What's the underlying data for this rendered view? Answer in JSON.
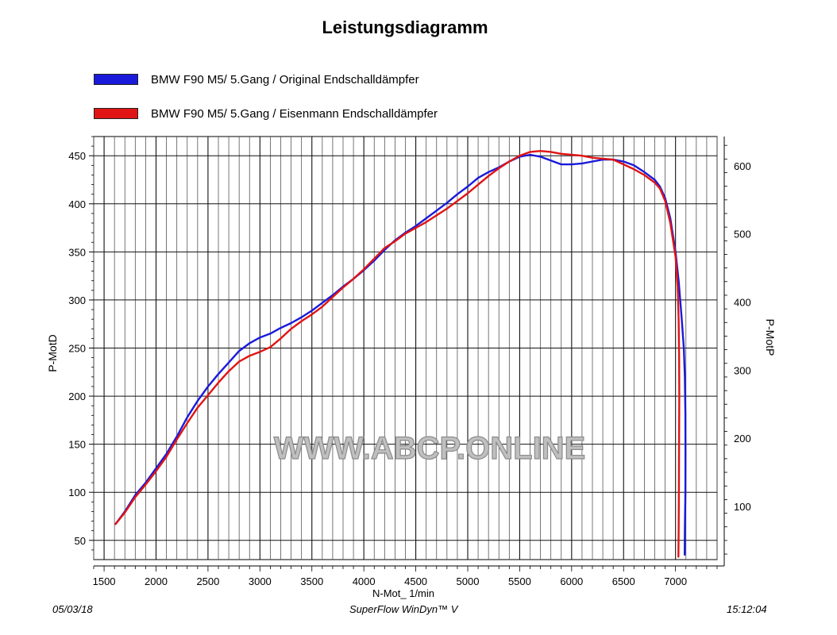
{
  "chart_data": {
    "type": "line",
    "title": "Leistungsdiagramm",
    "xlabel": "N-Mot_ 1/min",
    "ylabel_left": "P-MotD",
    "ylabel_right": "P-MotP",
    "xlim": [
      1400,
      7400
    ],
    "ylim_left": [
      30,
      470
    ],
    "ylim_right": [
      21.9,
      643
    ],
    "x_ticks": [
      1500,
      2000,
      2500,
      3000,
      3500,
      4000,
      4500,
      5000,
      5500,
      6000,
      6500,
      7000
    ],
    "y_ticks_left": [
      50,
      100,
      150,
      200,
      250,
      300,
      350,
      400,
      450
    ],
    "y_ticks_right": [
      100,
      200,
      300,
      400,
      500,
      600
    ],
    "grid": true,
    "legend_position": "top-left",
    "series": [
      {
        "name": "BMW F90 M5/ 5.Gang / Original Endschalldämpfer",
        "color": "#1a1adb",
        "points": [
          [
            1610,
            67
          ],
          [
            1700,
            80
          ],
          [
            1800,
            97
          ],
          [
            1900,
            110
          ],
          [
            2000,
            125
          ],
          [
            2100,
            140
          ],
          [
            2200,
            158
          ],
          [
            2300,
            178
          ],
          [
            2400,
            195
          ],
          [
            2500,
            210
          ],
          [
            2600,
            223
          ],
          [
            2700,
            235
          ],
          [
            2800,
            247
          ],
          [
            2900,
            255
          ],
          [
            3000,
            261
          ],
          [
            3100,
            265
          ],
          [
            3200,
            271
          ],
          [
            3300,
            276
          ],
          [
            3400,
            282
          ],
          [
            3500,
            289
          ],
          [
            3600,
            297
          ],
          [
            3700,
            305
          ],
          [
            3800,
            314
          ],
          [
            3900,
            322
          ],
          [
            4000,
            331
          ],
          [
            4100,
            341
          ],
          [
            4200,
            352
          ],
          [
            4300,
            362
          ],
          [
            4400,
            370
          ],
          [
            4500,
            377
          ],
          [
            4600,
            385
          ],
          [
            4700,
            393
          ],
          [
            4800,
            401
          ],
          [
            4900,
            410
          ],
          [
            5000,
            418
          ],
          [
            5100,
            427
          ],
          [
            5200,
            433
          ],
          [
            5300,
            438
          ],
          [
            5400,
            444
          ],
          [
            5500,
            449
          ],
          [
            5600,
            451
          ],
          [
            5700,
            449
          ],
          [
            5800,
            445
          ],
          [
            5900,
            441
          ],
          [
            6000,
            441
          ],
          [
            6100,
            442
          ],
          [
            6200,
            444
          ],
          [
            6300,
            446
          ],
          [
            6400,
            446
          ],
          [
            6500,
            444
          ],
          [
            6600,
            440
          ],
          [
            6700,
            433
          ],
          [
            6800,
            425
          ],
          [
            6850,
            418
          ],
          [
            6900,
            406
          ],
          [
            6950,
            385
          ],
          [
            7000,
            350
          ],
          [
            7030,
            320
          ],
          [
            7060,
            280
          ],
          [
            7080,
            250
          ],
          [
            7090,
            220
          ],
          [
            7095,
            180
          ],
          [
            7096,
            140
          ],
          [
            7095,
            100
          ],
          [
            7090,
            60
          ],
          [
            7088,
            35
          ]
        ]
      },
      {
        "name": "BMW F90 M5/ 5.Gang / Eisenmann Endschalldämpfer",
        "color": "#e01414",
        "points": [
          [
            1610,
            67
          ],
          [
            1700,
            79
          ],
          [
            1800,
            95
          ],
          [
            1900,
            108
          ],
          [
            2000,
            122
          ],
          [
            2100,
            137
          ],
          [
            2200,
            155
          ],
          [
            2300,
            172
          ],
          [
            2400,
            188
          ],
          [
            2500,
            201
          ],
          [
            2600,
            214
          ],
          [
            2700,
            226
          ],
          [
            2800,
            236
          ],
          [
            2900,
            242
          ],
          [
            3000,
            246
          ],
          [
            3100,
            251
          ],
          [
            3200,
            260
          ],
          [
            3300,
            270
          ],
          [
            3400,
            278
          ],
          [
            3500,
            285
          ],
          [
            3600,
            293
          ],
          [
            3700,
            303
          ],
          [
            3800,
            313
          ],
          [
            3900,
            322
          ],
          [
            4000,
            332
          ],
          [
            4100,
            343
          ],
          [
            4200,
            354
          ],
          [
            4300,
            361
          ],
          [
            4400,
            369
          ],
          [
            4500,
            375
          ],
          [
            4600,
            381
          ],
          [
            4700,
            388
          ],
          [
            4800,
            395
          ],
          [
            4900,
            403
          ],
          [
            5000,
            411
          ],
          [
            5100,
            420
          ],
          [
            5200,
            429
          ],
          [
            5300,
            437
          ],
          [
            5400,
            444
          ],
          [
            5500,
            450
          ],
          [
            5600,
            454
          ],
          [
            5700,
            455
          ],
          [
            5800,
            454
          ],
          [
            5900,
            452
          ],
          [
            6000,
            451
          ],
          [
            6100,
            450
          ],
          [
            6200,
            448
          ],
          [
            6300,
            447
          ],
          [
            6400,
            446
          ],
          [
            6500,
            441
          ],
          [
            6600,
            436
          ],
          [
            6700,
            430
          ],
          [
            6800,
            422
          ],
          [
            6850,
            416
          ],
          [
            6900,
            403
          ],
          [
            6950,
            380
          ],
          [
            7000,
            345
          ],
          [
            7020,
            315
          ],
          [
            7030,
            280
          ],
          [
            7035,
            240
          ],
          [
            7036,
            200
          ],
          [
            7034,
            150
          ],
          [
            7032,
            100
          ],
          [
            7030,
            60
          ],
          [
            7028,
            33
          ]
        ]
      }
    ]
  },
  "footer": {
    "date": "05/03/18",
    "software": "SuperFlow WinDyn™ V",
    "time": "15:12:04"
  },
  "watermark": "WWW.ABCP.ONLINE"
}
